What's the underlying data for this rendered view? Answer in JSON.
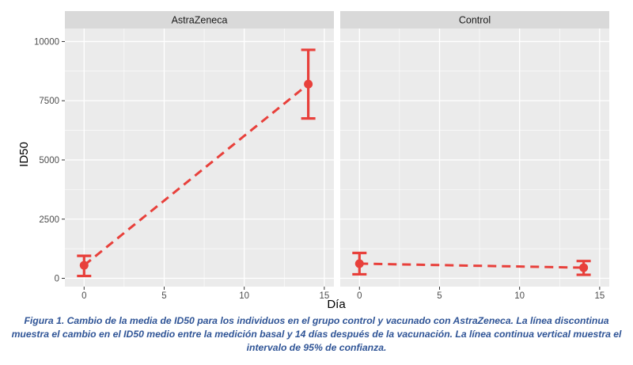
{
  "chart_data": {
    "type": "line",
    "ylabel": "ID50",
    "xlabel": "Día",
    "xlim": [
      -1.2,
      15.6
    ],
    "ylim": [
      -350,
      10550
    ],
    "x_ticks": [
      0,
      5,
      10,
      15
    ],
    "y_ticks": [
      0,
      2500,
      5000,
      7500,
      10000
    ],
    "x_tick_labels": [
      "0",
      "5",
      "10",
      "15"
    ],
    "y_tick_labels": [
      "0",
      "2500",
      "5000",
      "7500",
      "10000"
    ],
    "grid": true,
    "colors": {
      "series": "#e8403b",
      "panel_bg": "#ebebeb",
      "strip_bg": "#d9d9d9",
      "grid": "#ffffff"
    },
    "panels": [
      {
        "strip": "AstraZeneca",
        "points": [
          {
            "x": 0,
            "y": 550,
            "lower": 100,
            "upper": 950
          },
          {
            "x": 14,
            "y": 8200,
            "lower": 6750,
            "upper": 9650
          }
        ]
      },
      {
        "strip": "Control",
        "points": [
          {
            "x": 0,
            "y": 620,
            "lower": 170,
            "upper": 1070
          },
          {
            "x": 14,
            "y": 450,
            "lower": 150,
            "upper": 730
          }
        ]
      }
    ]
  },
  "caption": "Figura 1. Cambio de la media de ID50 para los individuos en el grupo control y vacunado con AstraZeneca. La línea discontinua muestra el cambio en el ID50 medio entre la medición basal y 14 días después de la vacunación. La línea continua vertical muestra el intervalo de 95% de confianza."
}
